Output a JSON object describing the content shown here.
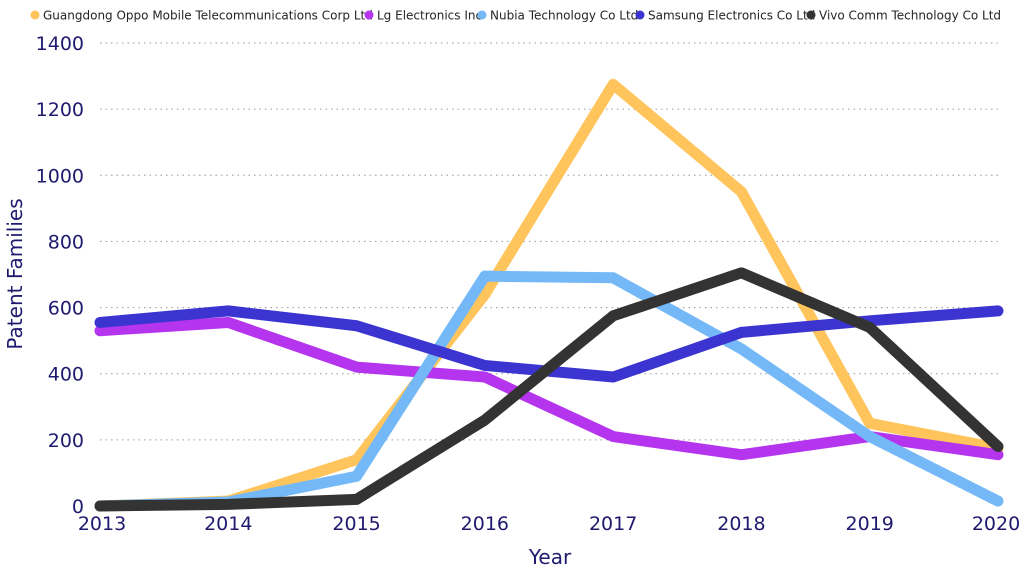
{
  "chart_data": {
    "type": "line",
    "xlabel": "Year",
    "ylabel": "Patent Families",
    "ylim": [
      0,
      1400
    ],
    "yticks": [
      0,
      200,
      400,
      600,
      800,
      1000,
      1200,
      1400
    ],
    "categories": [
      "2013",
      "2014",
      "2015",
      "2016",
      "2017",
      "2018",
      "2019",
      "2020"
    ],
    "grid": true,
    "legend_position": "top-left",
    "series": [
      {
        "name": "Guangdong Oppo Mobile Telecommunications Corp Ltd",
        "color": "#FFC55C",
        "values": [
          0,
          15,
          140,
          640,
          1275,
          950,
          250,
          175
        ]
      },
      {
        "name": "Lg Electronics Inc",
        "color": "#B535EF",
        "values": [
          530,
          555,
          420,
          390,
          210,
          155,
          210,
          155
        ]
      },
      {
        "name": "Nubia Technology Co Ltd",
        "color": "#74B8F8",
        "values": [
          0,
          12,
          90,
          695,
          690,
          475,
          210,
          15
        ]
      },
      {
        "name": "Samsung Electronics Co Ltd",
        "color": "#3C34D0",
        "values": [
          555,
          590,
          545,
          425,
          390,
          525,
          560,
          590
        ]
      },
      {
        "name": "Vivo Comm Technology Co Ltd",
        "color": "#333333",
        "values": [
          0,
          5,
          20,
          260,
          575,
          705,
          540,
          180
        ]
      }
    ]
  }
}
